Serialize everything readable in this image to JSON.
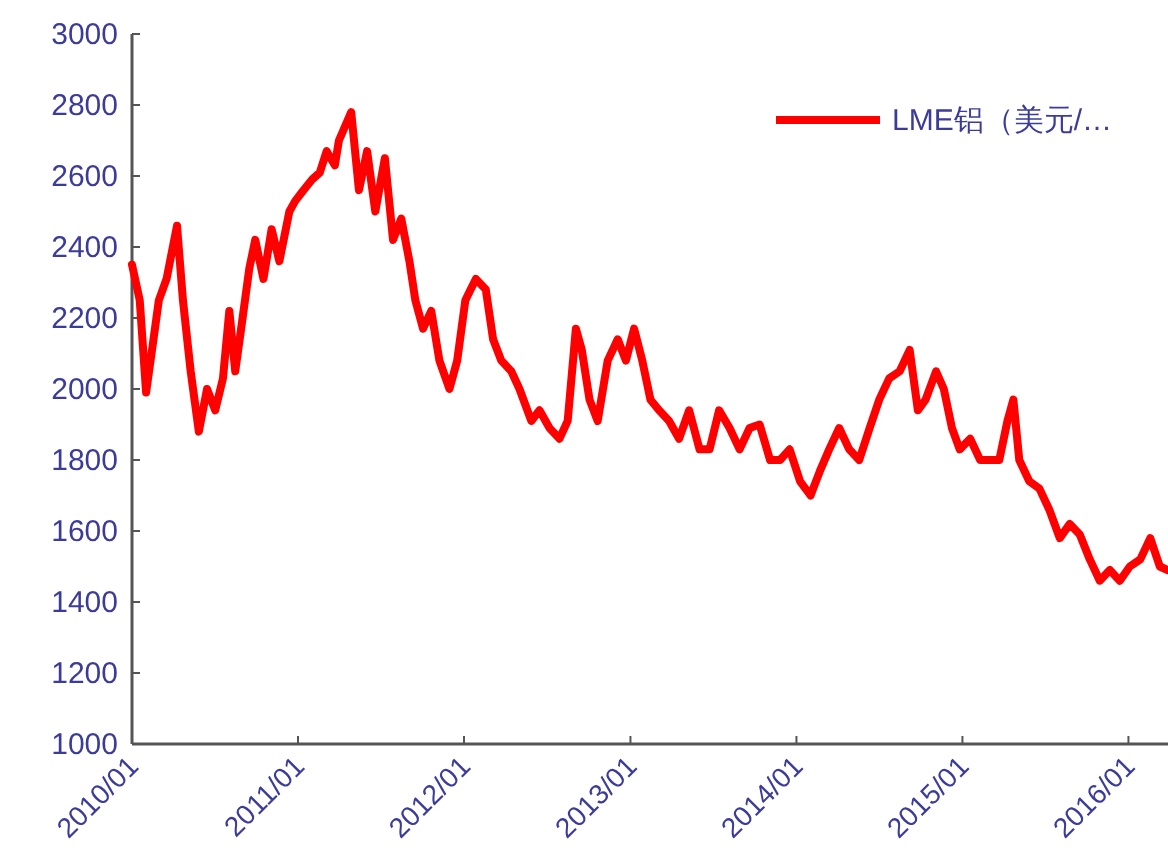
{
  "chart_data": {
    "type": "line",
    "x": [
      "2010-01-01",
      "2010-01-18",
      "2010-02-01",
      "2010-02-14",
      "2010-03-01",
      "2010-03-18",
      "2010-04-10",
      "2010-04-23",
      "2010-05-10",
      "2010-05-28",
      "2010-06-15",
      "2010-07-03",
      "2010-07-20",
      "2010-08-03",
      "2010-08-16",
      "2010-08-29",
      "2010-09-16",
      "2010-09-29",
      "2010-10-17",
      "2010-11-04",
      "2010-11-21",
      "2010-12-13",
      "2010-12-26",
      "2011-01-13",
      "2011-02-01",
      "2011-02-18",
      "2011-03-05",
      "2011-03-23",
      "2011-04-01",
      "2011-04-28",
      "2011-05-15",
      "2011-06-02",
      "2011-06-20",
      "2011-07-11",
      "2011-07-29",
      "2011-08-16",
      "2011-09-03",
      "2011-09-16",
      "2011-10-03",
      "2011-10-21",
      "2011-11-08",
      "2011-11-30",
      "2011-12-17",
      "2012-01-04",
      "2012-01-27",
      "2012-02-18",
      "2012-03-05",
      "2012-03-23",
      "2012-04-14",
      "2012-05-02",
      "2012-05-28",
      "2012-06-15",
      "2012-07-07",
      "2012-07-29",
      "2012-08-16",
      "2012-09-03",
      "2012-09-16",
      "2012-10-03",
      "2012-10-21",
      "2012-11-12",
      "2012-12-04",
      "2012-12-22",
      "2013-01-09",
      "2013-01-27",
      "2013-02-14",
      "2013-03-05",
      "2013-03-27",
      "2013-04-18",
      "2013-05-10",
      "2013-06-02",
      "2013-06-24",
      "2013-07-15",
      "2013-08-07",
      "2013-08-29",
      "2013-09-20",
      "2013-10-12",
      "2013-11-04",
      "2013-11-26",
      "2013-12-17",
      "2014-01-09",
      "2014-02-01",
      "2014-02-22",
      "2014-03-14",
      "2014-04-05",
      "2014-04-27",
      "2014-05-19",
      "2014-06-11",
      "2014-07-02",
      "2014-07-24",
      "2014-08-16",
      "2014-09-07",
      "2014-09-25",
      "2014-10-12",
      "2014-11-04",
      "2014-11-21",
      "2014-12-09",
      "2014-12-26",
      "2015-01-18",
      "2015-02-09",
      "2015-03-01",
      "2015-03-23",
      "2015-04-10",
      "2015-04-23",
      "2015-05-06",
      "2015-05-28",
      "2015-06-19",
      "2015-07-11",
      "2015-08-03",
      "2015-08-25",
      "2015-09-16",
      "2015-10-08",
      "2015-10-30",
      "2015-11-21",
      "2015-12-13",
      "2016-01-04",
      "2016-01-27",
      "2016-02-18",
      "2016-03-10",
      "2016-03-27"
    ],
    "series": [
      {
        "name": "LME铝（美元/…",
        "color": "#ff0000",
        "values": [
          2350,
          2250,
          1990,
          2110,
          2250,
          2310,
          2460,
          2250,
          2050,
          1880,
          2000,
          1940,
          2030,
          2220,
          2050,
          2170,
          2340,
          2420,
          2310,
          2450,
          2360,
          2500,
          2530,
          2560,
          2590,
          2610,
          2670,
          2630,
          2700,
          2780,
          2560,
          2670,
          2500,
          2650,
          2420,
          2480,
          2360,
          2250,
          2170,
          2220,
          2080,
          2000,
          2080,
          2250,
          2310,
          2280,
          2140,
          2080,
          2050,
          2000,
          1910,
          1940,
          1890,
          1860,
          1910,
          2170,
          2110,
          1970,
          1910,
          2080,
          2140,
          2080,
          2170,
          2080,
          1970,
          1940,
          1910,
          1860,
          1940,
          1830,
          1830,
          1940,
          1890,
          1830,
          1890,
          1900,
          1800,
          1800,
          1830,
          1740,
          1700,
          1770,
          1830,
          1890,
          1830,
          1800,
          1890,
          1970,
          2030,
          2050,
          2110,
          1940,
          1970,
          2050,
          2000,
          1890,
          1830,
          1860,
          1800,
          1800,
          1800,
          1910,
          1970,
          1800,
          1740,
          1720,
          1660,
          1580,
          1620,
          1590,
          1520,
          1460,
          1490,
          1460,
          1500,
          1520,
          1580,
          1500,
          1490
        ]
      }
    ],
    "xlim": [
      "2010-01-01",
      "2016-03-28"
    ],
    "xticks": [
      {
        "value": "2010-01-01",
        "label": "2010/01"
      },
      {
        "value": "2011-01-01",
        "label": "2011/01"
      },
      {
        "value": "2012-01-01",
        "label": "2012/01"
      },
      {
        "value": "2013-01-01",
        "label": "2013/01"
      },
      {
        "value": "2014-01-01",
        "label": "2014/01"
      },
      {
        "value": "2015-01-01",
        "label": "2015/01"
      },
      {
        "value": "2016-01-01",
        "label": "2016/01"
      }
    ],
    "ylim": [
      1000,
      3000
    ],
    "yticks": [
      1000,
      1200,
      1400,
      1600,
      1800,
      2000,
      2200,
      2400,
      2600,
      2800,
      3000
    ],
    "grid": false,
    "legend": "top right"
  }
}
